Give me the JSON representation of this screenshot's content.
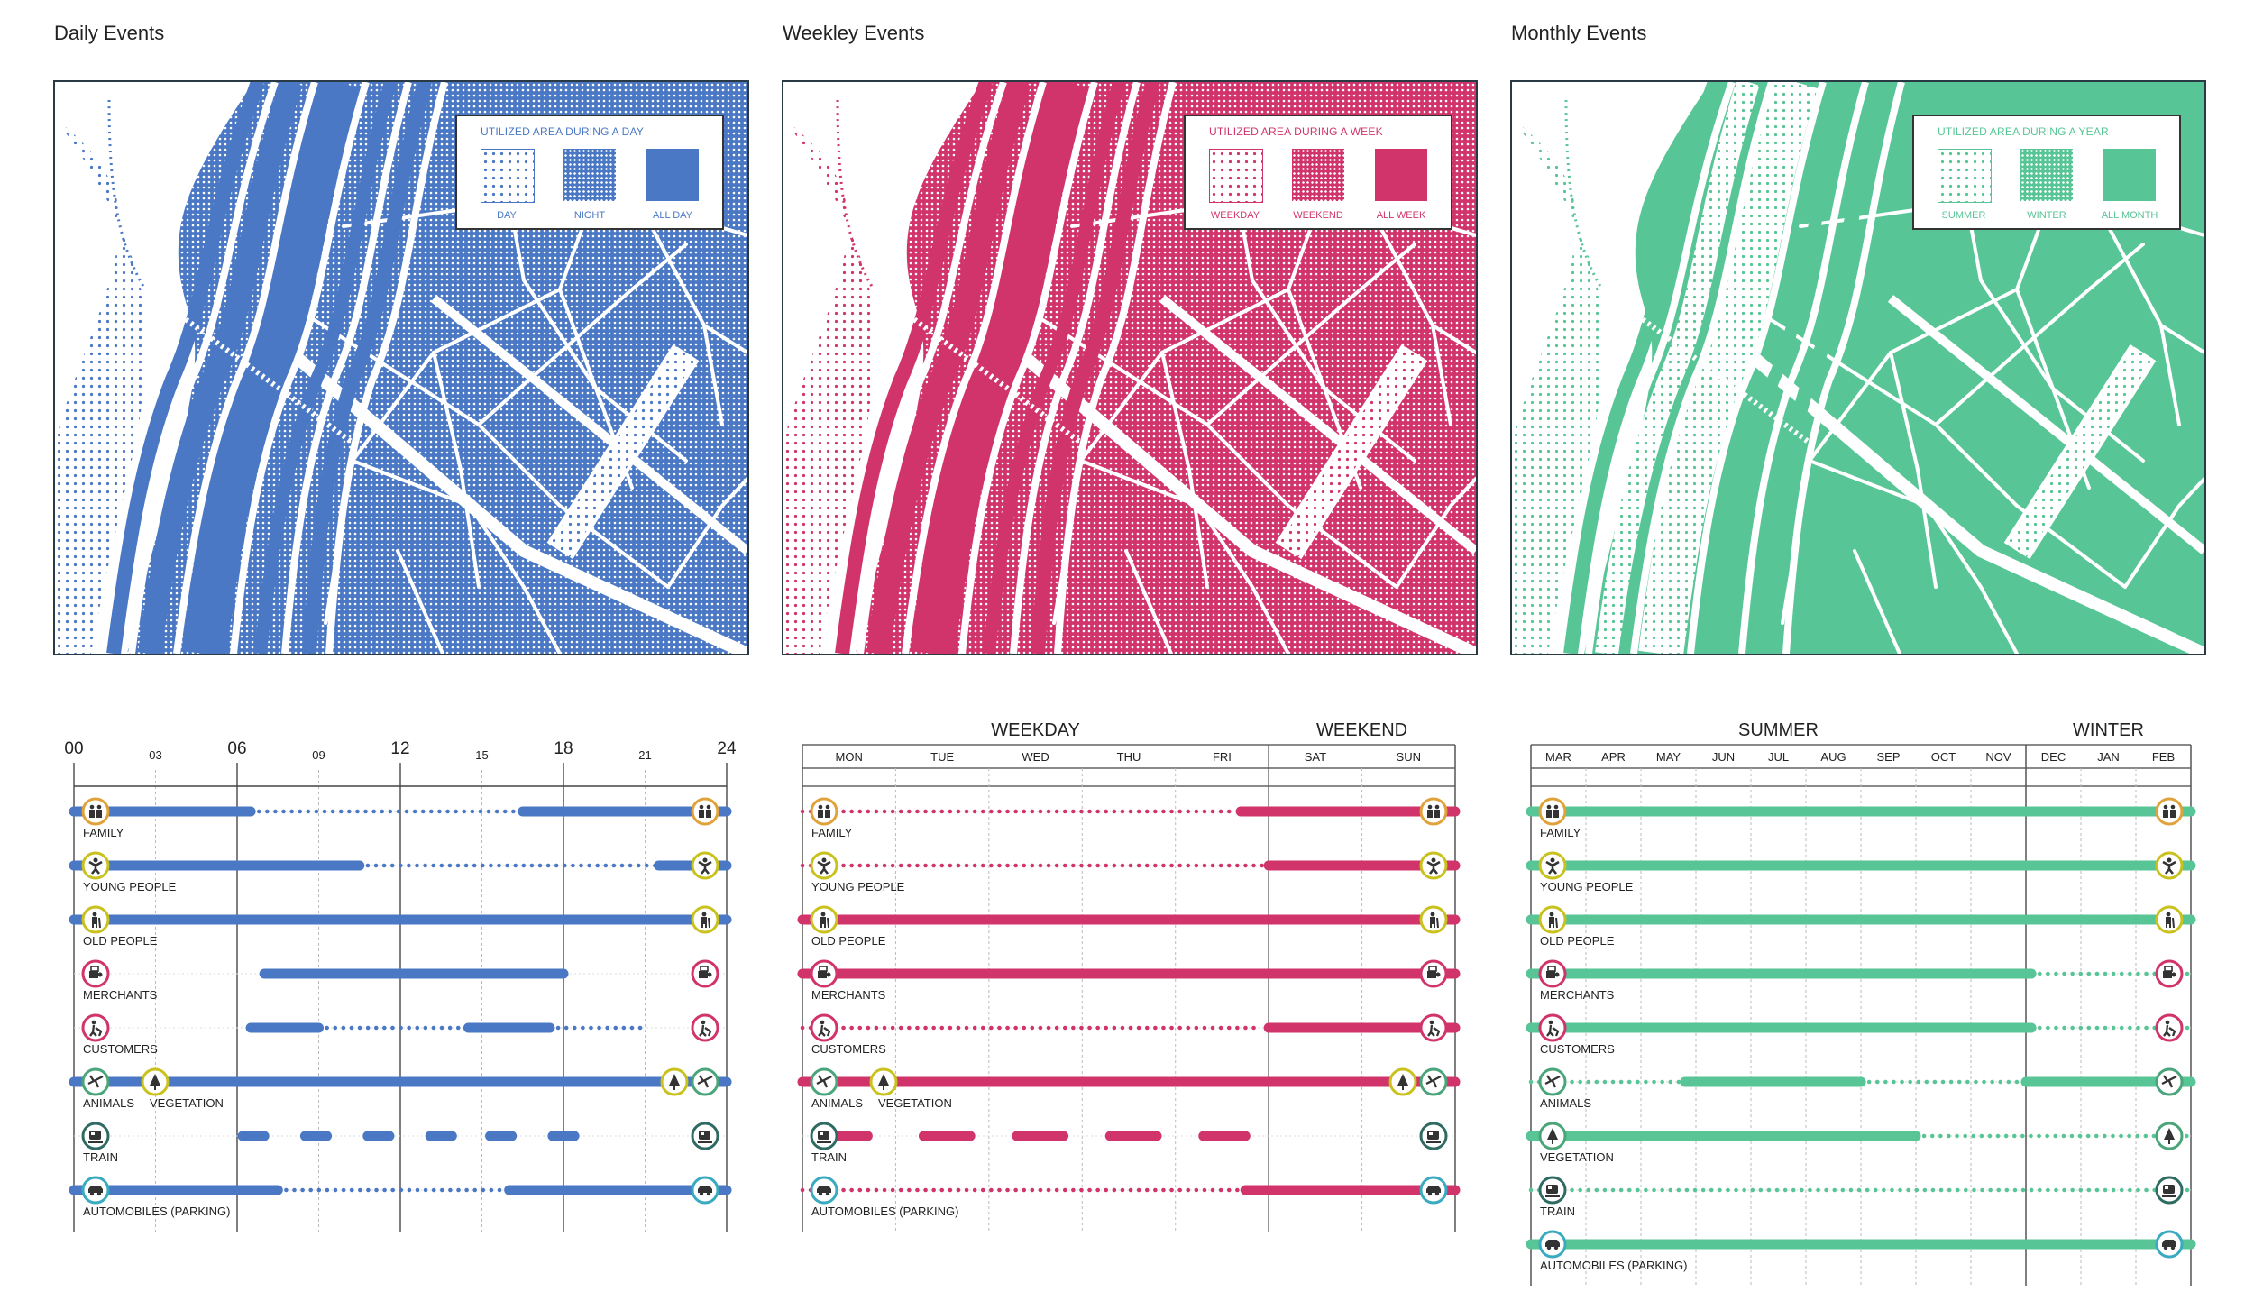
{
  "colors": {
    "daily": "#4a78c4",
    "weekly": "#d1346a",
    "monthly": "#58c596"
  },
  "panels": [
    {
      "title": "Daily Events",
      "legend": {
        "title": "UTILIZED AREA DURING A DAY",
        "swatches": [
          "DAY",
          "NIGHT",
          "ALL DAY"
        ]
      },
      "timeline": {
        "ticks": [
          {
            "label": "00",
            "major": true
          },
          {
            "label": "03",
            "major": false
          },
          {
            "label": "06",
            "major": true
          },
          {
            "label": "09",
            "major": false
          },
          {
            "label": "12",
            "major": true
          },
          {
            "label": "15",
            "major": false
          },
          {
            "label": "18",
            "major": true
          },
          {
            "label": "21",
            "major": false
          },
          {
            "label": "24",
            "major": true
          }
        ],
        "rows": [
          {
            "label": "FAMILY",
            "icon": "family-icon",
            "ring": "#e0a23a",
            "segments": [
              [
                "solid",
                0,
                6.5
              ],
              [
                "dot",
                6.5,
                16.5
              ],
              [
                "solid",
                16.5,
                24
              ]
            ]
          },
          {
            "label": "YOUNG PEOPLE",
            "icon": "young-people-icon",
            "ring": "#c9c21e",
            "segments": [
              [
                "solid",
                0,
                10.5
              ],
              [
                "dot",
                10.5,
                21.5
              ],
              [
                "solid",
                21.5,
                24
              ]
            ]
          },
          {
            "label": "OLD PEOPLE",
            "icon": "old-people-icon",
            "ring": "#c9c21e",
            "segments": [
              [
                "solid",
                0,
                24
              ]
            ]
          },
          {
            "label": "MERCHANTS",
            "icon": "merchants-icon",
            "ring": "#d1346a",
            "segments": [
              [
                "solid",
                7,
                18
              ]
            ]
          },
          {
            "label": "CUSTOMERS",
            "icon": "customers-icon",
            "ring": "#d1346a",
            "segments": [
              [
                "solid",
                6.5,
                9
              ],
              [
                "dot",
                9,
                14.5
              ],
              [
                "solid",
                14.5,
                17.5
              ],
              [
                "dot",
                17.5,
                21
              ]
            ]
          },
          {
            "label": "ANIMALS",
            "label2": "VEGETATION",
            "icon": "animals-icon",
            "icon2": "vegetation-icon",
            "ring": "#4aa57a",
            "ring2": "#c9c21e",
            "segments": [
              [
                "solid",
                0,
                24
              ]
            ]
          },
          {
            "label": "TRAIN",
            "icon": "train-icon",
            "ring": "#2f6b62",
            "segments": [
              [
                "dash",
                6.2,
                7
              ],
              [
                "dash",
                8.5,
                9.3
              ],
              [
                "dash",
                10.8,
                11.6
              ],
              [
                "dash",
                13.1,
                13.9
              ],
              [
                "dash",
                15.3,
                16.1
              ],
              [
                "dash",
                17.6,
                18.4
              ]
            ]
          },
          {
            "label": "AUTOMOBILES (PARKING)",
            "icon": "car-icon",
            "ring": "#3aaac0",
            "segments": [
              [
                "solid",
                0,
                7.5
              ],
              [
                "dot",
                7.5,
                16
              ],
              [
                "solid",
                16,
                24
              ]
            ]
          }
        ]
      }
    },
    {
      "title": "Weekley Events",
      "legend": {
        "title": "UTILIZED AREA DURING A WEEK",
        "swatches": [
          "WEEKDAY",
          "WEEKEND",
          "ALL WEEK"
        ]
      },
      "timeline": {
        "groups": [
          "WEEKDAY",
          "WEEKEND"
        ],
        "columns": [
          "MON",
          "TUE",
          "WED",
          "THU",
          "FRI",
          "SAT",
          "SUN"
        ],
        "rows": [
          {
            "label": "FAMILY",
            "icon": "family-icon",
            "ring": "#e0a23a",
            "segments": [
              [
                "dot",
                0,
                4.65
              ],
              [
                "solid",
                4.7,
                7
              ]
            ]
          },
          {
            "label": "YOUNG PEOPLE",
            "icon": "young-people-icon",
            "ring": "#c9c21e",
            "segments": [
              [
                "dot",
                0,
                5
              ],
              [
                "solid",
                5,
                7
              ]
            ]
          },
          {
            "label": "OLD PEOPLE",
            "icon": "old-people-icon",
            "ring": "#c9c21e",
            "segments": [
              [
                "solid",
                0,
                7
              ]
            ]
          },
          {
            "label": "MERCHANTS",
            "icon": "merchants-icon",
            "ring": "#d1346a",
            "segments": [
              [
                "solid",
                0,
                7
              ]
            ]
          },
          {
            "label": "CUSTOMERS",
            "icon": "customers-icon",
            "ring": "#d1346a",
            "segments": [
              [
                "dot",
                0,
                4.9
              ],
              [
                "solid",
                5,
                7
              ]
            ]
          },
          {
            "label": "ANIMALS",
            "label2": "VEGETATION",
            "icon": "animals-icon",
            "icon2": "vegetation-icon",
            "ring": "#4aa57a",
            "ring2": "#c9c21e",
            "segments": [
              [
                "solid",
                0,
                7
              ]
            ]
          },
          {
            "label": "TRAIN",
            "icon": "train-icon",
            "ring": "#2f6b62",
            "segments": [
              [
                "dash",
                0.2,
                0.7
              ],
              [
                "dash",
                1.3,
                1.8
              ],
              [
                "dash",
                2.3,
                2.8
              ],
              [
                "dash",
                3.3,
                3.8
              ],
              [
                "dash",
                4.3,
                4.75
              ]
            ]
          },
          {
            "label": "AUTOMOBILES (PARKING)",
            "icon": "car-icon",
            "ring": "#3aaac0",
            "segments": [
              [
                "dot",
                0,
                4.75
              ],
              [
                "solid",
                4.75,
                7
              ]
            ]
          }
        ]
      }
    },
    {
      "title": "Monthly Events",
      "legend": {
        "title": "UTILIZED AREA DURING A YEAR",
        "swatches": [
          "SUMMER",
          "WINTER",
          "ALL MONTH"
        ]
      },
      "timeline": {
        "groups": [
          "SUMMER",
          "WINTER"
        ],
        "columns": [
          "MAR",
          "APR",
          "MAY",
          "JUN",
          "JUL",
          "AUG",
          "SEP",
          "OCT",
          "NOV",
          "DEC",
          "JAN",
          "FEB"
        ],
        "rows": [
          {
            "label": "FAMILY",
            "icon": "family-icon",
            "ring": "#e0a23a",
            "segments": [
              [
                "solid",
                0,
                12
              ]
            ]
          },
          {
            "label": "YOUNG PEOPLE",
            "icon": "young-people-icon",
            "ring": "#c9c21e",
            "segments": [
              [
                "solid",
                0,
                12
              ]
            ]
          },
          {
            "label": "OLD PEOPLE",
            "icon": "old-people-icon",
            "ring": "#c9c21e",
            "segments": [
              [
                "solid",
                0,
                12
              ]
            ]
          },
          {
            "label": "MERCHANTS",
            "icon": "merchants-icon",
            "ring": "#d1346a",
            "segments": [
              [
                "solid",
                0,
                9.1
              ],
              [
                "dot",
                9.1,
                12
              ]
            ]
          },
          {
            "label": "CUSTOMERS",
            "icon": "customers-icon",
            "ring": "#d1346a",
            "segments": [
              [
                "solid",
                0,
                9.1
              ],
              [
                "dot",
                9.1,
                12
              ]
            ]
          },
          {
            "label": "ANIMALS",
            "icon": "animals-icon",
            "ring": "#4aa57a",
            "segments": [
              [
                "dot",
                0,
                2.8
              ],
              [
                "solid",
                2.8,
                6
              ],
              [
                "dot",
                6,
                9
              ],
              [
                "solid",
                9,
                12
              ]
            ]
          },
          {
            "label": "VEGETATION",
            "icon": "vegetation-icon",
            "ring": "#4aa57a",
            "segments": [
              [
                "solid",
                0,
                7
              ],
              [
                "dot",
                7,
                12
              ]
            ]
          },
          {
            "label": "TRAIN",
            "icon": "train-icon",
            "ring": "#2f6b62",
            "segments": [
              [
                "dot",
                0,
                12
              ]
            ]
          },
          {
            "label": "AUTOMOBILES (PARKING)",
            "icon": "car-icon",
            "ring": "#3aaac0",
            "segments": [
              [
                "solid",
                0,
                12
              ]
            ]
          }
        ]
      }
    }
  ]
}
